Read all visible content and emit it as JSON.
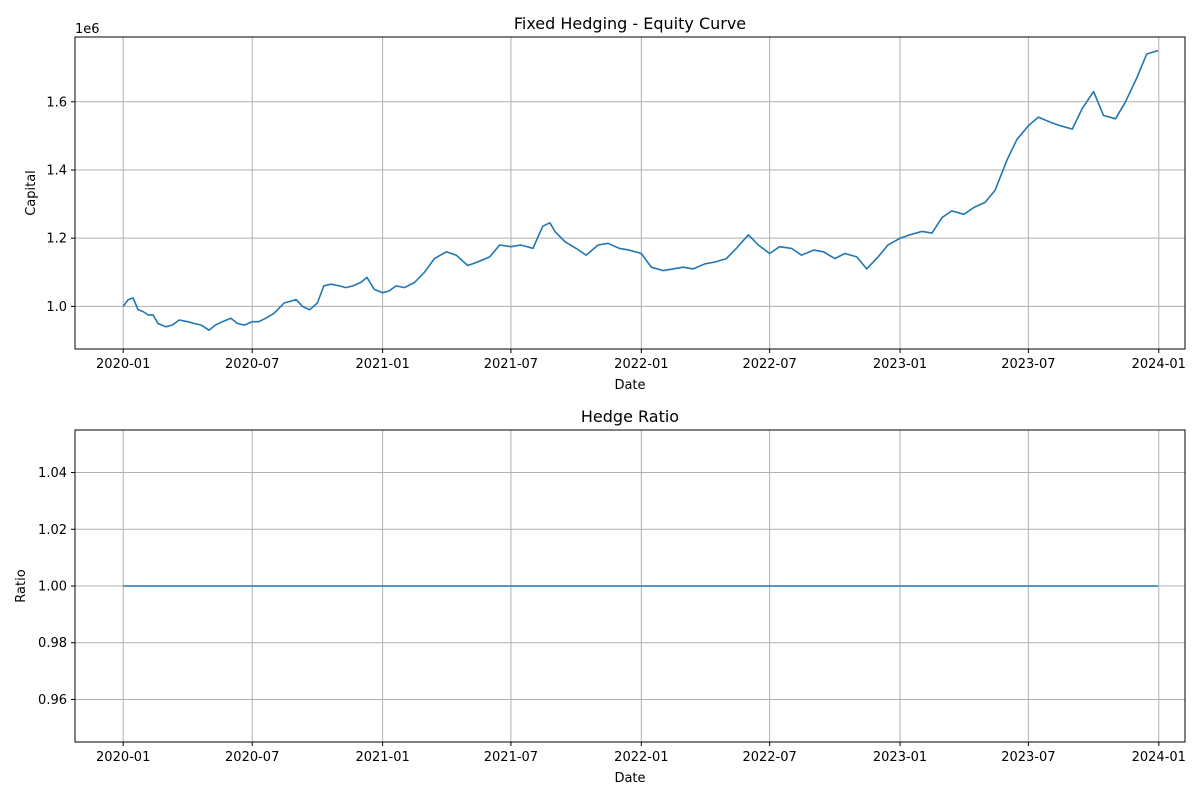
{
  "chart_data": [
    {
      "type": "line",
      "title": "Fixed Hedging - Equity Curve",
      "xlabel": "Date",
      "ylabel": "Capital",
      "offset_label": "1e6",
      "grid": true,
      "xlim": [
        "2019-10-25",
        "2024-02-07"
      ],
      "ylim": [
        0.875,
        1.79
      ],
      "x_ticks": [
        {
          "date": "2020-01-01",
          "label": "2020-01"
        },
        {
          "date": "2020-07-01",
          "label": "2020-07"
        },
        {
          "date": "2021-01-01",
          "label": "2021-01"
        },
        {
          "date": "2021-07-01",
          "label": "2021-07"
        },
        {
          "date": "2022-01-01",
          "label": "2022-01"
        },
        {
          "date": "2022-07-01",
          "label": "2022-07"
        },
        {
          "date": "2023-01-01",
          "label": "2023-01"
        },
        {
          "date": "2023-07-01",
          "label": "2023-07"
        },
        {
          "date": "2024-01-01",
          "label": "2024-01"
        }
      ],
      "y_ticks": [
        {
          "value": 1.0,
          "label": "1.0"
        },
        {
          "value": 1.2,
          "label": "1.2"
        },
        {
          "value": 1.4,
          "label": "1.4"
        },
        {
          "value": 1.6,
          "label": "1.6"
        }
      ],
      "series": [
        {
          "color": "#1f77b4",
          "x": [
            "2020-01-01",
            "2020-01-08",
            "2020-01-15",
            "2020-01-22",
            "2020-01-29",
            "2020-02-05",
            "2020-02-12",
            "2020-02-19",
            "2020-03-01",
            "2020-03-10",
            "2020-03-20",
            "2020-04-01",
            "2020-04-10",
            "2020-04-20",
            "2020-05-01",
            "2020-05-10",
            "2020-05-20",
            "2020-06-01",
            "2020-06-10",
            "2020-06-20",
            "2020-07-01",
            "2020-07-10",
            "2020-07-20",
            "2020-08-01",
            "2020-08-15",
            "2020-09-01",
            "2020-09-10",
            "2020-09-20",
            "2020-10-01",
            "2020-10-10",
            "2020-10-20",
            "2020-11-01",
            "2020-11-10",
            "2020-11-20",
            "2020-12-01",
            "2020-12-10",
            "2020-12-20",
            "2021-01-01",
            "2021-01-10",
            "2021-01-20",
            "2021-02-01",
            "2021-02-15",
            "2021-03-01",
            "2021-03-15",
            "2021-04-01",
            "2021-04-15",
            "2021-05-01",
            "2021-05-15",
            "2021-06-01",
            "2021-06-15",
            "2021-07-01",
            "2021-07-15",
            "2021-08-01",
            "2021-08-15",
            "2021-08-25",
            "2021-09-01",
            "2021-09-15",
            "2021-10-01",
            "2021-10-15",
            "2021-11-01",
            "2021-11-15",
            "2021-12-01",
            "2021-12-15",
            "2022-01-01",
            "2022-01-15",
            "2022-02-01",
            "2022-02-15",
            "2022-03-01",
            "2022-03-15",
            "2022-04-01",
            "2022-04-15",
            "2022-05-01",
            "2022-05-15",
            "2022-06-01",
            "2022-06-15",
            "2022-07-01",
            "2022-07-15",
            "2022-08-01",
            "2022-08-15",
            "2022-09-01",
            "2022-09-15",
            "2022-10-01",
            "2022-10-15",
            "2022-11-01",
            "2022-11-15",
            "2022-12-01",
            "2022-12-15",
            "2023-01-01",
            "2023-01-15",
            "2023-02-01",
            "2023-02-15",
            "2023-03-01",
            "2023-03-15",
            "2023-04-01",
            "2023-04-15",
            "2023-05-01",
            "2023-05-15",
            "2023-06-01",
            "2023-06-15",
            "2023-07-01",
            "2023-07-15",
            "2023-08-01",
            "2023-08-15",
            "2023-09-01",
            "2023-09-15",
            "2023-10-01",
            "2023-10-15",
            "2023-11-01",
            "2023-11-15",
            "2023-12-01",
            "2023-12-15",
            "2023-12-31"
          ],
          "y": [
            1.0,
            1.02,
            1.025,
            0.99,
            0.985,
            0.975,
            0.975,
            0.95,
            0.94,
            0.945,
            0.96,
            0.955,
            0.95,
            0.945,
            0.93,
            0.945,
            0.955,
            0.965,
            0.95,
            0.945,
            0.955,
            0.955,
            0.965,
            0.98,
            1.01,
            1.02,
            1.0,
            0.99,
            1.01,
            1.06,
            1.065,
            1.06,
            1.055,
            1.06,
            1.07,
            1.085,
            1.05,
            1.04,
            1.045,
            1.06,
            1.055,
            1.07,
            1.1,
            1.14,
            1.16,
            1.15,
            1.12,
            1.13,
            1.145,
            1.18,
            1.175,
            1.18,
            1.17,
            1.235,
            1.245,
            1.22,
            1.19,
            1.17,
            1.15,
            1.18,
            1.185,
            1.17,
            1.165,
            1.155,
            1.115,
            1.105,
            1.11,
            1.115,
            1.11,
            1.125,
            1.13,
            1.14,
            1.17,
            1.21,
            1.18,
            1.155,
            1.175,
            1.17,
            1.15,
            1.165,
            1.16,
            1.14,
            1.155,
            1.145,
            1.11,
            1.145,
            1.18,
            1.2,
            1.21,
            1.22,
            1.215,
            1.26,
            1.28,
            1.27,
            1.29,
            1.305,
            1.34,
            1.43,
            1.49,
            1.53,
            1.555,
            1.54,
            1.53,
            1.52,
            1.58,
            1.63,
            1.56,
            1.55,
            1.6,
            1.67,
            1.74,
            1.75
          ]
        }
      ]
    },
    {
      "type": "line",
      "title": "Hedge Ratio",
      "xlabel": "Date",
      "ylabel": "Ratio",
      "grid": true,
      "xlim": [
        "2019-10-25",
        "2024-02-07"
      ],
      "ylim": [
        0.945,
        1.055
      ],
      "x_ticks": [
        {
          "date": "2020-01-01",
          "label": "2020-01"
        },
        {
          "date": "2020-07-01",
          "label": "2020-07"
        },
        {
          "date": "2021-01-01",
          "label": "2021-01"
        },
        {
          "date": "2021-07-01",
          "label": "2021-07"
        },
        {
          "date": "2022-01-01",
          "label": "2022-01"
        },
        {
          "date": "2022-07-01",
          "label": "2022-07"
        },
        {
          "date": "2023-01-01",
          "label": "2023-01"
        },
        {
          "date": "2023-07-01",
          "label": "2023-07"
        },
        {
          "date": "2024-01-01",
          "label": "2024-01"
        }
      ],
      "y_ticks": [
        {
          "value": 0.96,
          "label": "0.96"
        },
        {
          "value": 0.98,
          "label": "0.98"
        },
        {
          "value": 1.0,
          "label": "1.00"
        },
        {
          "value": 1.02,
          "label": "1.02"
        },
        {
          "value": 1.04,
          "label": "1.04"
        }
      ],
      "series": [
        {
          "color": "#1f77b4",
          "x": [
            "2020-01-01",
            "2023-12-31"
          ],
          "y": [
            1.0,
            1.0
          ]
        }
      ]
    }
  ]
}
